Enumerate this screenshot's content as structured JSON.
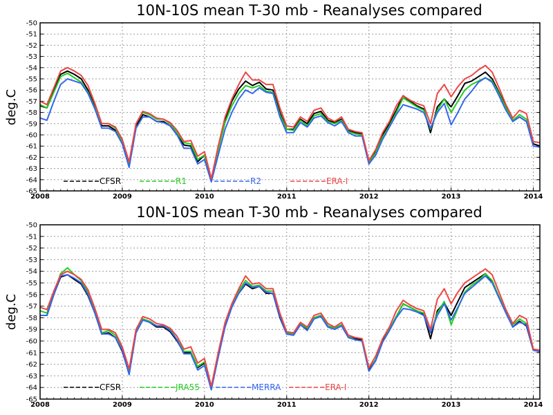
{
  "chart_data": [
    {
      "type": "line",
      "title": "10N-10S mean T-30 mb - Reanalyses compared",
      "ylabel": "deg.C",
      "xlabel": "",
      "ylim": [
        -65,
        -50
      ],
      "yticks": [
        "-50",
        "-51",
        "-52",
        "-53",
        "-54",
        "-55",
        "-56",
        "-57",
        "-58",
        "-59",
        "-60",
        "-61",
        "-62",
        "-63",
        "-64",
        "-65"
      ],
      "xlim": [
        2008,
        2014.08
      ],
      "xticks": [
        "2008",
        "2009",
        "2010",
        "2011",
        "2012",
        "2013",
        "2014"
      ],
      "grid": true,
      "legend_position": "bottom-inside",
      "x": [
        2008.0,
        2008.083,
        2008.167,
        2008.25,
        2008.333,
        2008.417,
        2008.5,
        2008.583,
        2008.667,
        2008.75,
        2008.833,
        2008.917,
        2009.0,
        2009.083,
        2009.167,
        2009.25,
        2009.333,
        2009.417,
        2009.5,
        2009.583,
        2009.667,
        2009.75,
        2009.833,
        2009.917,
        2010.0,
        2010.083,
        2010.167,
        2010.25,
        2010.333,
        2010.417,
        2010.5,
        2010.583,
        2010.667,
        2010.75,
        2010.833,
        2010.917,
        2011.0,
        2011.083,
        2011.167,
        2011.25,
        2011.333,
        2011.417,
        2011.5,
        2011.583,
        2011.667,
        2011.75,
        2011.833,
        2011.917,
        2012.0,
        2012.083,
        2012.167,
        2012.25,
        2012.333,
        2012.417,
        2012.5,
        2012.583,
        2012.667,
        2012.75,
        2012.833,
        2012.917,
        2013.0,
        2013.083,
        2013.167,
        2013.25,
        2013.333,
        2013.417,
        2013.5,
        2013.583,
        2013.667,
        2013.75,
        2013.833,
        2013.917,
        2014.0,
        2014.083
      ],
      "series": [
        {
          "name": "CFSR",
          "color": "#000000",
          "values": [
            -57.4,
            -57.6,
            -56.0,
            -54.6,
            -54.3,
            -54.6,
            -55.0,
            -56.0,
            -57.5,
            -59.2,
            -59.2,
            -59.6,
            -60.8,
            -62.6,
            -59.2,
            -58.2,
            -58.4,
            -58.8,
            -58.8,
            -59.2,
            -60.0,
            -60.9,
            -61.0,
            -62.4,
            -61.8,
            -64.0,
            -61.2,
            -58.6,
            -57.0,
            -55.9,
            -55.2,
            -55.6,
            -55.3,
            -55.9,
            -56.0,
            -58.0,
            -59.5,
            -59.5,
            -58.6,
            -59.0,
            -58.1,
            -57.9,
            -58.7,
            -58.9,
            -58.6,
            -59.6,
            -59.8,
            -59.9,
            -62.4,
            -61.5,
            -60.0,
            -59.0,
            -57.8,
            -56.5,
            -57.0,
            -57.4,
            -57.7,
            -59.8,
            -57.5,
            -56.8,
            -57.5,
            -56.5,
            -55.4,
            -55.2,
            -54.8,
            -54.4,
            -55.0,
            -56.2,
            -57.5,
            -58.8,
            -58.4,
            -58.8,
            -60.8,
            -61.0
          ]
        },
        {
          "name": "R1",
          "color": "#22cc22",
          "values": [
            -57.3,
            -57.6,
            -56.2,
            -54.8,
            -54.5,
            -54.9,
            -55.3,
            -56.2,
            -57.6,
            -59.0,
            -59.0,
            -59.4,
            -60.6,
            -62.6,
            -59.0,
            -58.0,
            -58.2,
            -58.6,
            -58.6,
            -59.0,
            -59.8,
            -60.7,
            -60.8,
            -62.2,
            -61.8,
            -64.0,
            -61.3,
            -58.9,
            -57.4,
            -56.3,
            -55.6,
            -55.8,
            -55.6,
            -56.1,
            -56.2,
            -58.2,
            -59.5,
            -59.6,
            -58.7,
            -59.2,
            -58.3,
            -58.1,
            -58.8,
            -59.0,
            -58.7,
            -59.7,
            -59.9,
            -60.0,
            -62.5,
            -61.6,
            -60.2,
            -59.2,
            -58.0,
            -56.7,
            -57.1,
            -57.5,
            -57.8,
            -59.5,
            -57.8,
            -56.8,
            -58.0,
            -57.0,
            -56.0,
            -55.5,
            -55.2,
            -54.9,
            -55.2,
            -56.3,
            -57.6,
            -58.7,
            -58.2,
            -58.6,
            -60.6,
            -60.7
          ]
        },
        {
          "name": "R2",
          "color": "#3366ee",
          "values": [
            -58.5,
            -58.7,
            -57.0,
            -55.5,
            -55.0,
            -55.2,
            -55.4,
            -56.3,
            -57.7,
            -59.4,
            -59.4,
            -59.7,
            -60.8,
            -62.9,
            -59.4,
            -58.4,
            -58.4,
            -58.8,
            -58.9,
            -59.2,
            -60.0,
            -61.2,
            -61.2,
            -62.6,
            -62.2,
            -64.2,
            -61.8,
            -59.5,
            -58.0,
            -56.8,
            -56.0,
            -56.3,
            -55.8,
            -56.2,
            -56.3,
            -58.4,
            -59.8,
            -59.8,
            -58.9,
            -59.3,
            -58.5,
            -58.3,
            -58.9,
            -59.2,
            -58.8,
            -59.8,
            -60.1,
            -60.1,
            -62.6,
            -61.8,
            -60.4,
            -59.3,
            -58.2,
            -57.3,
            -57.5,
            -57.7,
            -58.0,
            -59.4,
            -58.0,
            -57.2,
            -59.1,
            -58.0,
            -56.8,
            -56.1,
            -55.3,
            -54.9,
            -55.3,
            -56.5,
            -57.8,
            -58.8,
            -58.4,
            -58.8,
            -61.0,
            -61.1
          ]
        },
        {
          "name": "ERA-I",
          "color": "#ee4444",
          "values": [
            -57.0,
            -57.3,
            -55.8,
            -54.3,
            -54.0,
            -54.3,
            -54.7,
            -55.6,
            -57.2,
            -59.0,
            -59.0,
            -59.3,
            -60.4,
            -62.4,
            -59.0,
            -57.9,
            -58.1,
            -58.5,
            -58.6,
            -58.9,
            -59.6,
            -60.6,
            -60.5,
            -61.9,
            -61.5,
            -63.9,
            -61.0,
            -58.4,
            -56.8,
            -55.5,
            -54.4,
            -55.1,
            -55.1,
            -55.5,
            -55.5,
            -57.6,
            -59.2,
            -59.3,
            -58.4,
            -58.8,
            -57.8,
            -57.6,
            -58.5,
            -58.8,
            -58.4,
            -59.5,
            -59.7,
            -59.8,
            -62.3,
            -61.3,
            -59.8,
            -58.8,
            -57.4,
            -56.5,
            -56.9,
            -57.2,
            -57.4,
            -59.0,
            -56.3,
            -55.5,
            -56.6,
            -55.7,
            -55.0,
            -54.7,
            -54.2,
            -53.8,
            -54.4,
            -55.8,
            -57.3,
            -58.5,
            -57.8,
            -58.1,
            -60.6,
            -60.7
          ]
        }
      ]
    },
    {
      "type": "line",
      "title": "10N-10S mean T-30 mb - Reanalyses compared",
      "ylabel": "deg.C",
      "xlabel": "",
      "ylim": [
        -65,
        -50
      ],
      "yticks": [
        "-50",
        "-51",
        "-52",
        "-53",
        "-54",
        "-55",
        "-56",
        "-57",
        "-58",
        "-59",
        "-60",
        "-61",
        "-62",
        "-63",
        "-64",
        "-65"
      ],
      "xlim": [
        2008,
        2014.08
      ],
      "xticks": [
        "2008",
        "2009",
        "2010",
        "2011",
        "2012",
        "2013",
        "2014"
      ],
      "grid": true,
      "legend_position": "bottom-inside",
      "x": [
        2008.0,
        2008.083,
        2008.167,
        2008.25,
        2008.333,
        2008.417,
        2008.5,
        2008.583,
        2008.667,
        2008.75,
        2008.833,
        2008.917,
        2009.0,
        2009.083,
        2009.167,
        2009.25,
        2009.333,
        2009.417,
        2009.5,
        2009.583,
        2009.667,
        2009.75,
        2009.833,
        2009.917,
        2010.0,
        2010.083,
        2010.167,
        2010.25,
        2010.333,
        2010.417,
        2010.5,
        2010.583,
        2010.667,
        2010.75,
        2010.833,
        2010.917,
        2011.0,
        2011.083,
        2011.167,
        2011.25,
        2011.333,
        2011.417,
        2011.5,
        2011.583,
        2011.667,
        2011.75,
        2011.833,
        2011.917,
        2012.0,
        2012.083,
        2012.167,
        2012.25,
        2012.333,
        2012.417,
        2012.5,
        2012.583,
        2012.667,
        2012.75,
        2012.833,
        2012.917,
        2013.0,
        2013.083,
        2013.167,
        2013.25,
        2013.333,
        2013.417,
        2013.5,
        2013.583,
        2013.667,
        2013.75,
        2013.833,
        2013.917,
        2014.0,
        2014.083
      ],
      "series": [
        {
          "name": "CFSR",
          "color": "#000000",
          "values": [
            -57.8,
            -57.8,
            -56.0,
            -54.5,
            -54.3,
            -54.7,
            -55.1,
            -56.1,
            -57.6,
            -59.4,
            -59.3,
            -59.7,
            -60.9,
            -62.8,
            -59.2,
            -58.1,
            -58.4,
            -58.8,
            -58.8,
            -59.2,
            -60.0,
            -61.0,
            -61.0,
            -62.3,
            -61.9,
            -64.1,
            -61.3,
            -58.7,
            -57.0,
            -55.9,
            -55.1,
            -55.5,
            -55.3,
            -55.9,
            -55.9,
            -58.0,
            -59.4,
            -59.5,
            -58.6,
            -59.0,
            -58.0,
            -57.8,
            -58.7,
            -58.9,
            -58.6,
            -59.6,
            -59.8,
            -59.9,
            -62.5,
            -61.6,
            -60.0,
            -59.0,
            -57.9,
            -56.8,
            -57.1,
            -57.4,
            -57.7,
            -59.8,
            -57.4,
            -56.7,
            -57.8,
            -56.6,
            -55.4,
            -55.0,
            -54.6,
            -54.2,
            -54.9,
            -56.2,
            -57.5,
            -58.8,
            -58.3,
            -58.7,
            -60.8,
            -60.9
          ]
        },
        {
          "name": "JRA55",
          "color": "#22cc22",
          "values": [
            -57.4,
            -57.6,
            -55.9,
            -54.2,
            -53.7,
            -54.3,
            -54.8,
            -55.8,
            -57.4,
            -59.3,
            -59.1,
            -59.5,
            -60.7,
            -62.6,
            -59.1,
            -58.1,
            -58.3,
            -58.7,
            -58.7,
            -59.0,
            -59.9,
            -60.9,
            -60.9,
            -62.2,
            -61.8,
            -64.0,
            -61.2,
            -58.6,
            -56.9,
            -55.7,
            -54.8,
            -55.3,
            -55.2,
            -55.7,
            -55.7,
            -57.8,
            -59.3,
            -59.4,
            -58.5,
            -58.9,
            -58.0,
            -57.8,
            -58.7,
            -58.9,
            -58.6,
            -59.6,
            -59.9,
            -60.0,
            -62.6,
            -61.6,
            -60.1,
            -59.0,
            -57.9,
            -56.8,
            -57.1,
            -57.4,
            -57.6,
            -59.3,
            -57.6,
            -56.6,
            -58.6,
            -57.2,
            -55.8,
            -55.2,
            -54.8,
            -54.2,
            -54.8,
            -56.2,
            -57.4,
            -58.6,
            -58.1,
            -58.5,
            -60.7,
            -60.8
          ]
        },
        {
          "name": "MERRA",
          "color": "#3366ee",
          "values": [
            -57.8,
            -57.8,
            -56.0,
            -54.4,
            -54.3,
            -54.6,
            -55.0,
            -56.0,
            -57.6,
            -59.4,
            -59.4,
            -59.7,
            -60.8,
            -62.9,
            -59.3,
            -58.2,
            -58.4,
            -58.7,
            -58.7,
            -59.1,
            -59.9,
            -61.1,
            -61.1,
            -62.5,
            -62.1,
            -64.2,
            -61.4,
            -58.8,
            -57.1,
            -55.9,
            -55.0,
            -55.4,
            -55.3,
            -55.8,
            -55.9,
            -57.9,
            -59.4,
            -59.5,
            -58.6,
            -59.1,
            -58.1,
            -57.9,
            -58.8,
            -59.0,
            -58.7,
            -59.7,
            -59.9,
            -60.0,
            -62.6,
            -61.7,
            -60.1,
            -59.1,
            -58.0,
            -57.2,
            -57.3,
            -57.5,
            -57.8,
            -59.3,
            -57.8,
            -56.8,
            -58.2,
            -57.1,
            -55.9,
            -55.4,
            -54.9,
            -54.4,
            -55.0,
            -56.3,
            -57.6,
            -58.8,
            -58.4,
            -58.6,
            -60.8,
            -60.9
          ]
        },
        {
          "name": "ERA-I",
          "color": "#ee4444",
          "values": [
            -57.1,
            -57.3,
            -55.7,
            -54.3,
            -54.0,
            -54.3,
            -54.7,
            -55.6,
            -57.2,
            -59.0,
            -59.0,
            -59.3,
            -60.5,
            -62.4,
            -59.0,
            -57.9,
            -58.1,
            -58.5,
            -58.6,
            -58.9,
            -59.6,
            -60.7,
            -60.5,
            -61.9,
            -61.5,
            -63.9,
            -61.0,
            -58.4,
            -56.8,
            -55.5,
            -54.4,
            -55.1,
            -55.0,
            -55.5,
            -55.5,
            -57.6,
            -59.2,
            -59.3,
            -58.4,
            -58.8,
            -57.8,
            -57.6,
            -58.5,
            -58.8,
            -58.4,
            -59.5,
            -59.7,
            -59.8,
            -62.3,
            -61.3,
            -59.8,
            -58.8,
            -57.4,
            -56.5,
            -56.9,
            -57.2,
            -57.4,
            -59.0,
            -56.4,
            -55.5,
            -56.8,
            -55.8,
            -55.0,
            -54.6,
            -54.2,
            -53.8,
            -54.3,
            -55.8,
            -57.3,
            -58.5,
            -57.8,
            -58.1,
            -60.7,
            -60.8
          ]
        }
      ]
    }
  ]
}
